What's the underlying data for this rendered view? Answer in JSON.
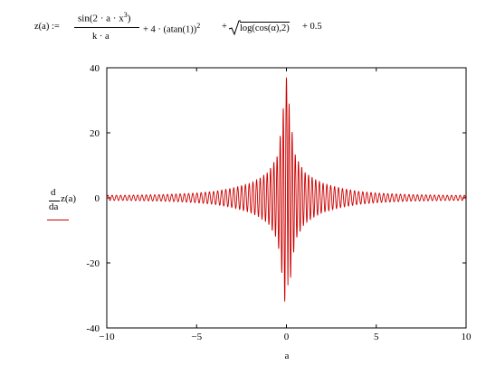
{
  "formula": {
    "lhs": "z(a) :=",
    "numerator_main": "sin(2 · a · x",
    "numerator_exp": "3",
    "numerator_close": ")",
    "denominator": "k · a",
    "term_plus": "+ 4 · (atan(1))",
    "term_exp": "2",
    "sqrt_content": "log(cos(α),2) + 0.5",
    "term_plus2": "+",
    "term_plus3": "+ 0.5"
  },
  "legend": {
    "d_top": "d",
    "da": "da",
    "z": "z(a)",
    "line_color": "#cc0000"
  },
  "chart_data": {
    "type": "line",
    "xlabel": "a",
    "ylabel": "",
    "xlim": [
      -10,
      10
    ],
    "ylim": [
      -40,
      40
    ],
    "x_ticks": [
      -10,
      -5,
      0,
      5,
      10
    ],
    "y_ticks": [
      40,
      20,
      0,
      -20,
      -40
    ],
    "x_tick_labels": [
      "−10",
      "−5",
      "0",
      "5",
      "10"
    ],
    "y_tick_labels": [
      "40",
      "20",
      "0",
      "-20",
      "-40"
    ],
    "grid": false,
    "series": [
      {
        "name": "d/da z(a)",
        "color": "#cc0000",
        "x": [
          -10,
          -9,
          -8,
          -7,
          -6,
          -5,
          -4,
          -3,
          -2,
          -1.5,
          -1,
          -0.5,
          -0.3,
          0,
          0.3,
          0.5,
          1,
          1.5,
          2,
          3,
          4,
          5,
          6,
          7,
          8,
          9,
          10
        ],
        "amplitude": [
          0.8,
          0.8,
          0.9,
          1.0,
          1.2,
          1.5,
          2.0,
          3.0,
          4.5,
          6,
          8,
          13,
          21,
          37,
          21,
          13,
          8,
          6,
          4.5,
          3.0,
          2.0,
          1.5,
          1.2,
          1.0,
          0.9,
          0.8,
          0.8
        ],
        "peak_max": 37,
        "peak_min": -37
      }
    ]
  }
}
